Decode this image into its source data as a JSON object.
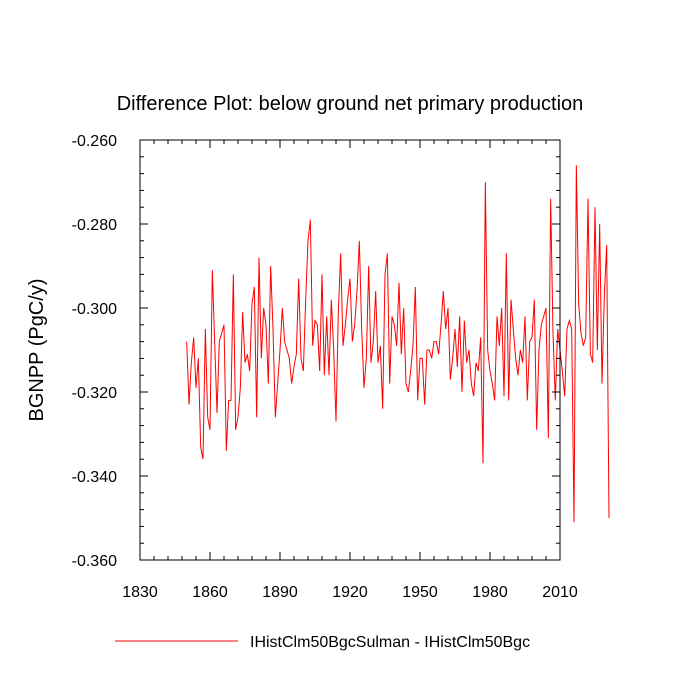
{
  "chart_data": {
    "type": "line",
    "title": "Difference Plot: below ground net primary production",
    "xlabel": "",
    "ylabel": "BGNPP  (PgC/y)",
    "xlim": [
      1830,
      2010
    ],
    "ylim": [
      -0.36,
      -0.26
    ],
    "x_ticks": [
      1830,
      1860,
      1890,
      1920,
      1950,
      1980,
      2010
    ],
    "y_ticks": [
      -0.26,
      -0.28,
      -0.3,
      -0.32,
      -0.34,
      -0.36
    ],
    "x_tick_labels": [
      "1830",
      "1860",
      "1890",
      "1920",
      "1950",
      "1980",
      "2010"
    ],
    "y_tick_labels": [
      "-0.260",
      "-0.280",
      "-0.300",
      "-0.320",
      "-0.340",
      "-0.360"
    ],
    "grid": false,
    "legend_position": "bottom",
    "series": [
      {
        "name": "IHistClm50BgcSulman - IHistClm50Bgc",
        "color": "#ff0000",
        "x_start": 1850,
        "x_step": 1,
        "values": [
          -0.308,
          -0.323,
          -0.313,
          -0.307,
          -0.319,
          -0.312,
          -0.333,
          -0.336,
          -0.305,
          -0.326,
          -0.329,
          -0.291,
          -0.308,
          -0.325,
          -0.308,
          -0.306,
          -0.304,
          -0.334,
          -0.322,
          -0.322,
          -0.292,
          -0.329,
          -0.326,
          -0.319,
          -0.301,
          -0.313,
          -0.311,
          -0.315,
          -0.299,
          -0.295,
          -0.326,
          -0.288,
          -0.312,
          -0.3,
          -0.304,
          -0.318,
          -0.29,
          -0.305,
          -0.326,
          -0.318,
          -0.31,
          -0.3,
          -0.308,
          -0.31,
          -0.312,
          -0.318,
          -0.314,
          -0.311,
          -0.293,
          -0.312,
          -0.315,
          -0.298,
          -0.284,
          -0.279,
          -0.309,
          -0.303,
          -0.304,
          -0.315,
          -0.292,
          -0.316,
          -0.302,
          -0.316,
          -0.298,
          -0.31,
          -0.327,
          -0.301,
          -0.287,
          -0.309,
          -0.304,
          -0.298,
          -0.293,
          -0.308,
          -0.304,
          -0.296,
          -0.284,
          -0.305,
          -0.319,
          -0.312,
          -0.29,
          -0.313,
          -0.308,
          -0.296,
          -0.313,
          -0.309,
          -0.324,
          -0.292,
          -0.287,
          -0.318,
          -0.302,
          -0.304,
          -0.309,
          -0.294,
          -0.311,
          -0.3,
          -0.318,
          -0.32,
          -0.315,
          -0.309,
          -0.295,
          -0.322,
          -0.312,
          -0.312,
          -0.323,
          -0.31,
          -0.31,
          -0.312,
          -0.308,
          -0.308,
          -0.311,
          -0.304,
          -0.296,
          -0.305,
          -0.3,
          -0.317,
          -0.312,
          -0.305,
          -0.314,
          -0.302,
          -0.32,
          -0.303,
          -0.313,
          -0.31,
          -0.318,
          -0.321,
          -0.313,
          -0.315,
          -0.307,
          -0.337,
          -0.27,
          -0.31,
          -0.315,
          -0.318,
          -0.322,
          -0.302,
          -0.309,
          -0.3,
          -0.321,
          -0.287,
          -0.322,
          -0.298,
          -0.305,
          -0.312,
          -0.316,
          -0.31,
          -0.313,
          -0.302,
          -0.322,
          -0.308,
          -0.307,
          -0.298,
          -0.329,
          -0.31,
          -0.304,
          -0.302,
          -0.3,
          -0.331,
          -0.274,
          -0.306,
          -0.322,
          -0.305,
          -0.31,
          -0.315,
          -0.321,
          -0.305,
          -0.303,
          -0.305,
          -0.351,
          -0.266,
          -0.299,
          -0.306,
          -0.309,
          -0.307,
          -0.274,
          -0.311,
          -0.313,
          -0.276,
          -0.31,
          -0.28,
          -0.318,
          -0.297,
          -0.285,
          -0.35
        ]
      }
    ]
  }
}
